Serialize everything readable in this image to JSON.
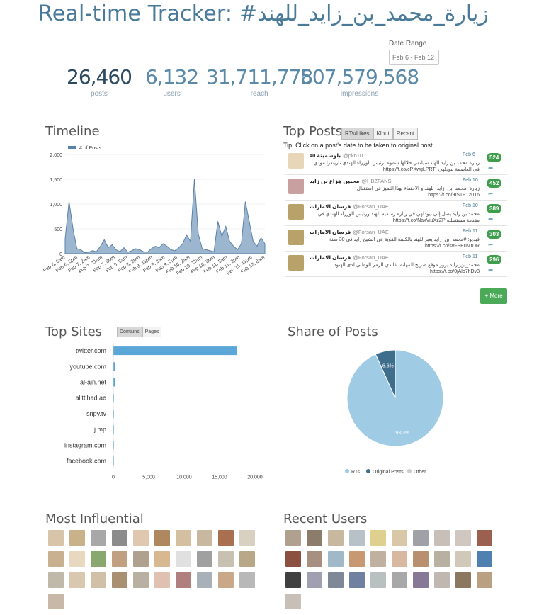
{
  "header": {
    "title": "Real-time Tracker: #زيارة_محمد_بن_زايد_للهند",
    "date_range_label": "Date Range",
    "date_range_value": "Feb 6 - Feb 12"
  },
  "stats": [
    {
      "value": "26,460",
      "label": "posts"
    },
    {
      "value": "6,132",
      "label": "users"
    },
    {
      "value": "31,711,778",
      "label": "reach"
    },
    {
      "value": "507,579,568",
      "label": "impressions"
    }
  ],
  "sections": {
    "timeline": "Timeline",
    "top_posts": "Top Posts",
    "top_sites": "Top Sites",
    "share_of_posts": "Share of Posts",
    "most_influential": "Most Influential",
    "recent_users": "Recent Users"
  },
  "top_posts": {
    "tabs": [
      "RTs/Likes",
      "Klout",
      "Recent"
    ],
    "tip": "Tip: Click on a post's date to be taken to original post",
    "more_label": "+ More",
    "items": [
      {
        "author": "بلوسميتة 40",
        "handle": "@pkn10...",
        "date": "Feb 6",
        "text": "زيارة محمد بن زايد للهند سيلتقي خلالها سموه برئيس الوزراء الهندي ناريندرا مودي في العاصمة نيودلهي https://t.co/cPXwgLPRTI",
        "count": "524"
      },
      {
        "author": "محبين هزاع بن زايد",
        "handle": "@HBZFANS",
        "date": "Feb 10",
        "text": "زيارة_محمد_بن_زايد_للهند و الاحتفاء بهذا التميز في استقبال https://t.co/9IS1P12016",
        "count": "452"
      },
      {
        "author": "فرسان الامارات",
        "handle": "@Forsan_UAE",
        "date": "Feb 10",
        "text": "محمد بن زايد يصل إلى نيودلهي في زيارة رسمية للهند ورئيس الوزراء الهندي في مقدمة مستقبليه https://t.co/NaxViuXzZP",
        "count": "389"
      },
      {
        "author": "فرسان الامارات",
        "handle": "@Forsan_UAE",
        "date": "Feb 11",
        "text": "فيديو: #محمد_بن_زايد يعبر للهند بالكلمة القوية عن الشيخ زايد في 30 سنة https://t.co/svFSE0MrDR",
        "count": "303"
      },
      {
        "author": "فرسان الامارات",
        "handle": "@Forsan_UAE",
        "date": "Feb 11",
        "text": "محمد_بن_زايد يزور موقع ضريح المهاتما غاندي الرمز الوطني لدى الهنود https://t.co/0jAlo7hDv3",
        "count": "296"
      }
    ]
  },
  "sites_tabs": [
    "Domains",
    "Pages"
  ],
  "colors": {
    "accent": "#5ba8d8",
    "dark": "#3f6e8c",
    "green": "#3f9e4c",
    "light": "#b9d8ec"
  },
  "chart_data": [
    {
      "type": "area",
      "title": "Timeline",
      "legend": [
        "# of Posts"
      ],
      "ylim": [
        0,
        2000
      ],
      "yticks": [
        "0",
        "500",
        "1,000",
        "1,500",
        "2,000"
      ],
      "xticks": [
        "Feb 6, 6am",
        "Feb 6, 5pm",
        "Feb 7, 2am",
        "Feb 7, 11am",
        "Feb 7, 8pm",
        "Feb 8, 5am",
        "Feb 8, 2pm",
        "Feb 8, 11pm",
        "Feb 9, 8am",
        "Feb 9, 5pm",
        "Feb 10, 2am",
        "Feb 10, 11am",
        "Feb 10, 8pm",
        "Feb 11, 5am",
        "Feb 11, 2pm",
        "Feb 11, 11pm",
        "Feb 12, 8am"
      ],
      "series": [
        {
          "name": "# of Posts",
          "values": [
            300,
            1050,
            500,
            100,
            80,
            20,
            30,
            60,
            40,
            150,
            280,
            120,
            180,
            80,
            40,
            120,
            30,
            60,
            100,
            80,
            40,
            30,
            100,
            150,
            120,
            200,
            150,
            80,
            60,
            120,
            200,
            380,
            250,
            1500,
            400,
            100,
            80,
            60,
            40,
            650,
            350,
            550,
            250,
            150,
            80,
            200,
            1050,
            650,
            250,
            150,
            320,
            200
          ]
        }
      ]
    },
    {
      "type": "bar",
      "title": "Top Sites",
      "categories": [
        "twitter.com",
        "youtube.com",
        "al-ain.net",
        "alittihad.ae",
        "snpy.tv",
        "j.mp",
        "instagram.com",
        "facebook.com"
      ],
      "values": [
        17500,
        300,
        200,
        60,
        50,
        40,
        30,
        20
      ],
      "xticks": [
        "0",
        "5,000",
        "10,000",
        "15,000",
        "20,000"
      ],
      "xlim": [
        0,
        20000
      ]
    },
    {
      "type": "pie",
      "title": "Share of Posts",
      "categories": [
        "RTs",
        "Original Posts",
        "Other"
      ],
      "values": [
        93.3,
        6.6,
        0.1
      ],
      "labels": [
        "93.3%",
        "6.6%",
        ""
      ]
    }
  ]
}
